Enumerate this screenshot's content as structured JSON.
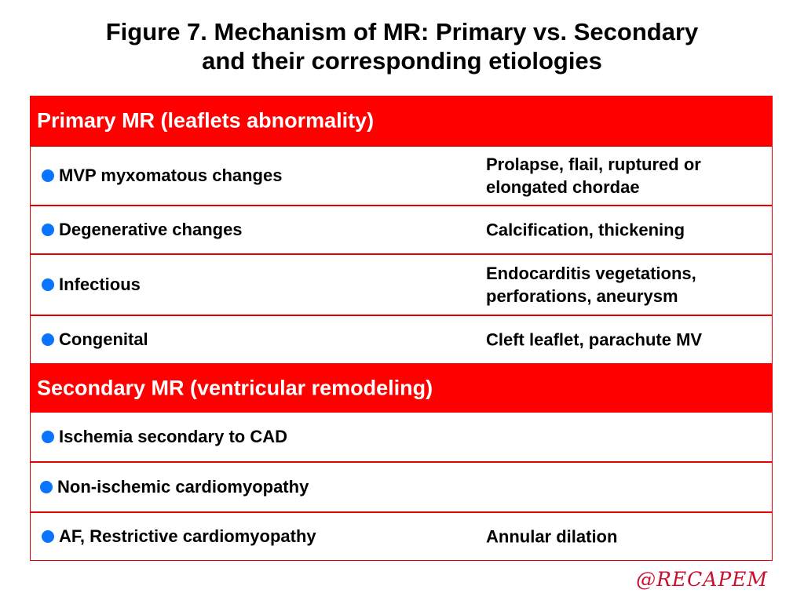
{
  "title": {
    "line1": "Figure 7. Mechanism of MR: Primary vs. Secondary",
    "line2": "and their corresponding etiologies"
  },
  "primary": {
    "header": "Primary MR (leaflets abnormality)",
    "rows": [
      {
        "label": "MVP myxomatous changes",
        "detail_line1": "Prolapse, flail, ruptured or",
        "detail_line2": "elongated chordae"
      },
      {
        "label": "Degenerative changes",
        "detail_line1": "Calcification, thickening",
        "detail_line2": ""
      },
      {
        "label": "Infectious",
        "detail_line1": "Endocarditis vegetations,",
        "detail_line2": "perforations, aneurysm"
      },
      {
        "label": "Congenital",
        "detail_line1": "Cleft leaflet, parachute MV",
        "detail_line2": ""
      }
    ]
  },
  "secondary": {
    "header": "Secondary MR (ventricular remodeling)",
    "rows": [
      {
        "label": "Ischemia secondary to CAD",
        "detail_line1": "",
        "detail_line2": ""
      },
      {
        "label": "Non-ischemic cardiomyopathy",
        "detail_line1": "",
        "detail_line2": ""
      },
      {
        "label": "AF, Restrictive cardiomyopathy",
        "detail_line1": "Annular dilation",
        "detail_line2": ""
      }
    ]
  },
  "watermark": "@RECAPEM",
  "colors": {
    "header_bg": "#ff0000",
    "border": "#e60000",
    "bullet": "#0a73ff",
    "watermark": "#c8102e"
  }
}
